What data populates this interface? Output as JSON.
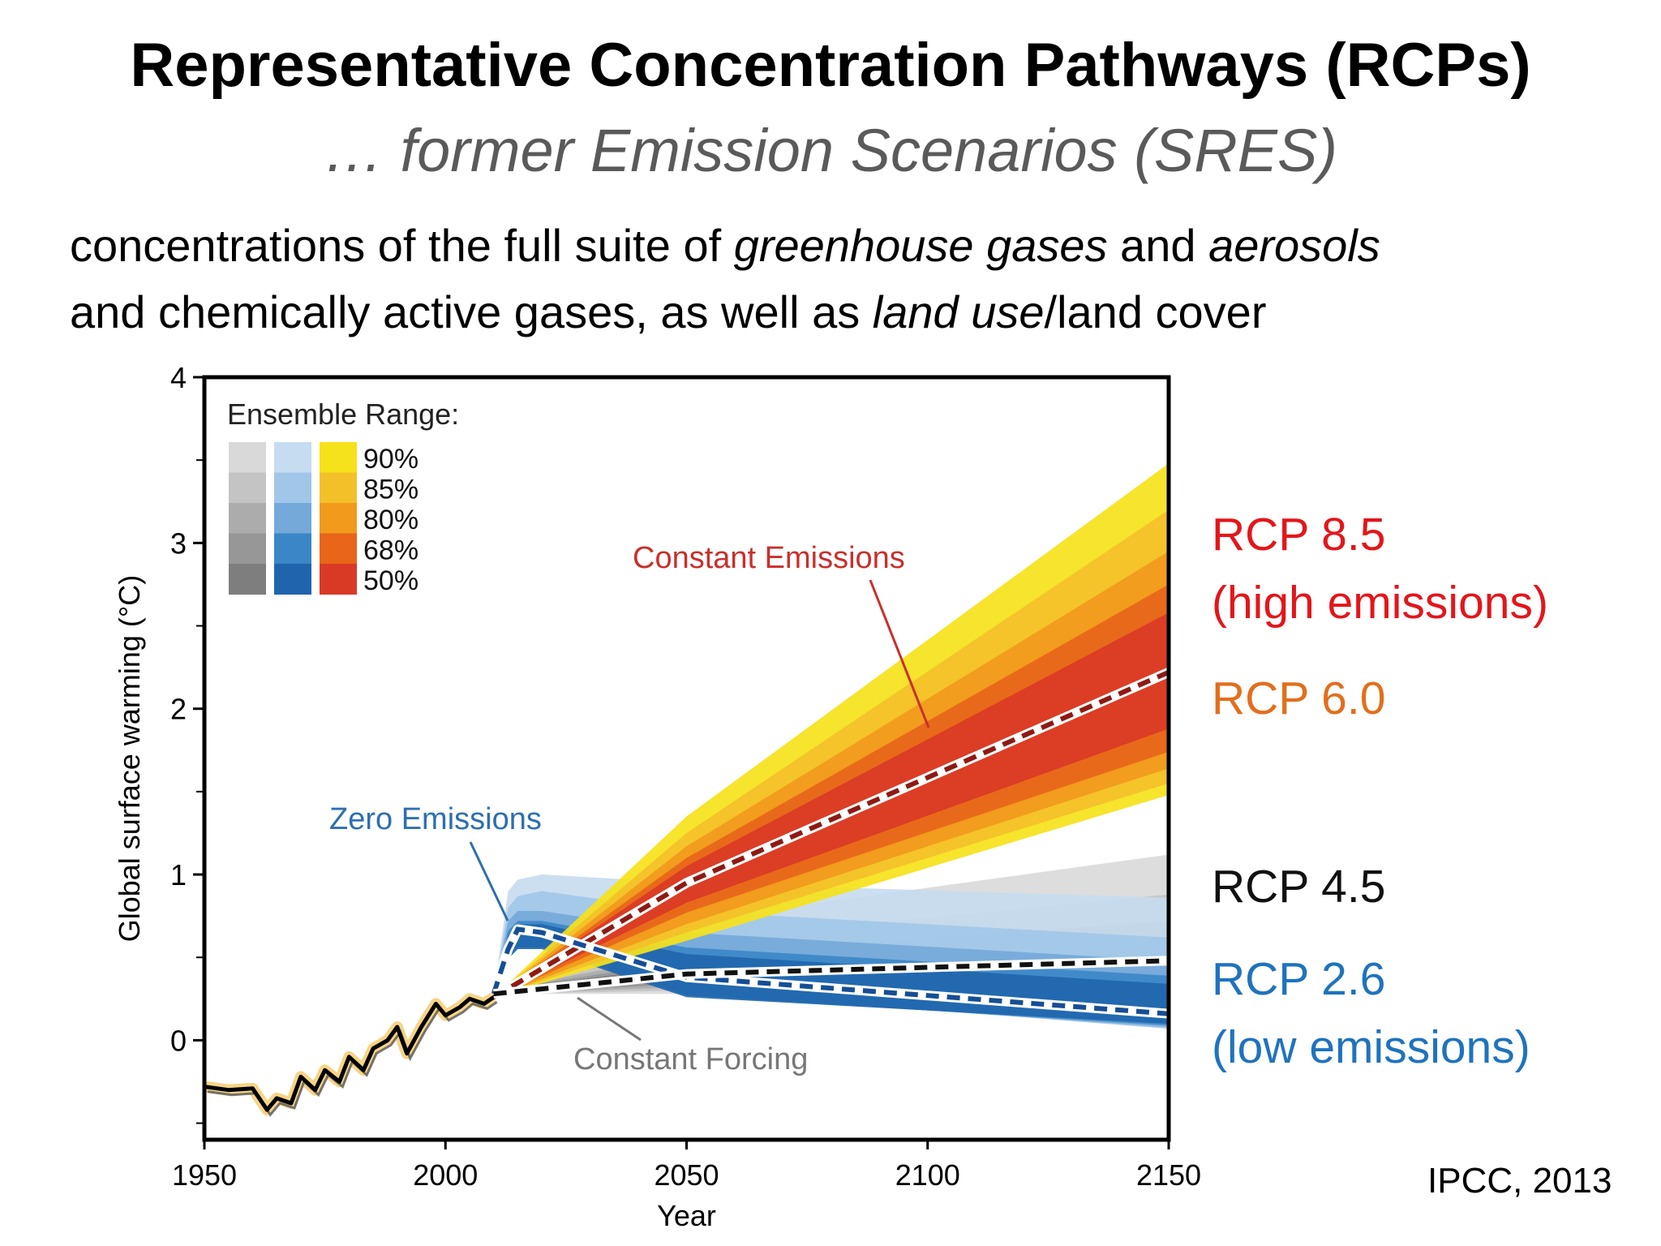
{
  "slide": {
    "title": "Representative Concentration Pathways (RCPs)",
    "subtitle": "… former Emission Scenarios (SRES)",
    "line1": {
      "a": "concentrations of the full suite of ",
      "b": "greenhouse gases",
      "c": " and ",
      "d": "aerosols"
    },
    "line2": {
      "a": "and chemically active gases, as well as ",
      "b": "land use",
      "c": "/land cover"
    },
    "source": "IPCC, 2013"
  },
  "rcp_labels": {
    "rcp85": "RCP 8.5",
    "rcp85_sub": "(high emissions)",
    "rcp60": "RCP 6.0",
    "rcp45": "RCP 4.5",
    "rcp26": "RCP 2.6",
    "rcp26_sub": "(low emissions)",
    "colors": {
      "rcp85": "#e3161b",
      "rcp60": "#e26f1c",
      "rcp45": "#111111",
      "rcp26": "#1e73be"
    }
  },
  "chart_data": {
    "type": "area",
    "xlabel": "Year",
    "ylabel": "Global surface warming (°C)",
    "xlim": [
      1950,
      2150
    ],
    "ylim": [
      -0.6,
      4
    ],
    "xticks": [
      1950,
      2000,
      2050,
      2100,
      2150
    ],
    "yticks": [
      0,
      1,
      2,
      3,
      4
    ],
    "grid": false,
    "legend": {
      "title": "Ensemble Range:",
      "levels": [
        "90%",
        "85%",
        "80%",
        "68%",
        "50%"
      ],
      "placement": "top-left",
      "swatches": {
        "gray": [
          "#d9d9d9",
          "#c4c4c4",
          "#acacac",
          "#979797",
          "#7e7e7e"
        ],
        "blue": [
          "#c6dcf0",
          "#a1c6e8",
          "#74a9d9",
          "#3b86c6",
          "#1f65ad"
        ],
        "warm": [
          "#f6e21a",
          "#f4c02a",
          "#f19a1c",
          "#e8651a",
          "#d93a26"
        ]
      }
    },
    "annotations": [
      {
        "text": "Constant Emissions",
        "color": "#c8302c"
      },
      {
        "text": "Zero Emissions",
        "color": "#2d6fb0"
      },
      {
        "text": "Constant Forcing",
        "color": "#777777"
      }
    ],
    "historical": {
      "x": [
        1950,
        1955,
        1960,
        1963,
        1965,
        1968,
        1970,
        1973,
        1975,
        1978,
        1980,
        1983,
        1985,
        1988,
        1990,
        1992,
        1995,
        1998,
        2000,
        2003,
        2005,
        2008,
        2010
      ],
      "y": [
        -0.28,
        -0.3,
        -0.29,
        -0.42,
        -0.35,
        -0.38,
        -0.22,
        -0.3,
        -0.18,
        -0.25,
        -0.1,
        -0.18,
        -0.05,
        0.0,
        0.08,
        -0.08,
        0.08,
        0.22,
        0.15,
        0.2,
        0.25,
        0.22,
        0.26
      ]
    },
    "series": [
      {
        "name": "Constant Emissions",
        "x": [
          2010,
          2050,
          2150
        ],
        "median": [
          0.26,
          0.95,
          2.22
        ],
        "ranges": {
          "90%": [
            [
              0.26,
              0.26
            ],
            [
              0.6,
              1.35
            ],
            [
              1.48,
              3.48
            ]
          ],
          "85%": [
            [
              0.26,
              0.26
            ],
            [
              0.65,
              1.25
            ],
            [
              1.55,
              3.2
            ]
          ],
          "80%": [
            [
              0.26,
              0.26
            ],
            [
              0.7,
              1.17
            ],
            [
              1.64,
              2.95
            ]
          ],
          "68%": [
            [
              0.26,
              0.26
            ],
            [
              0.77,
              1.1
            ],
            [
              1.74,
              2.75
            ]
          ],
          "50%": [
            [
              0.26,
              0.26
            ],
            [
              0.83,
              1.05
            ],
            [
              1.88,
              2.58
            ]
          ]
        }
      },
      {
        "name": "Zero Emissions",
        "x": [
          2010,
          2013,
          2015,
          2020,
          2050,
          2150
        ],
        "median": [
          0.28,
          0.55,
          0.67,
          0.65,
          0.38,
          0.16
        ],
        "ranges": {
          "90%": [
            [
              0.28,
              0.28
            ],
            [
              0.55,
              0.9
            ],
            [
              0.6,
              0.97
            ],
            [
              0.6,
              1.0
            ],
            [
              0.3,
              0.95
            ],
            [
              0.07,
              0.86
            ]
          ],
          "85%": [
            [
              0.28,
              0.28
            ],
            [
              0.55,
              0.8
            ],
            [
              0.6,
              0.87
            ],
            [
              0.6,
              0.9
            ],
            [
              0.3,
              0.78
            ],
            [
              0.07,
              0.62
            ]
          ],
          "80%": [
            [
              0.28,
              0.28
            ],
            [
              0.52,
              0.72
            ],
            [
              0.58,
              0.78
            ],
            [
              0.58,
              0.78
            ],
            [
              0.28,
              0.65
            ],
            [
              0.08,
              0.48
            ]
          ],
          "68%": [
            [
              0.28,
              0.28
            ],
            [
              0.5,
              0.66
            ],
            [
              0.56,
              0.72
            ],
            [
              0.56,
              0.72
            ],
            [
              0.27,
              0.56
            ],
            [
              0.09,
              0.39
            ]
          ],
          "50%": [
            [
              0.28,
              0.28
            ],
            [
              0.49,
              0.63
            ],
            [
              0.55,
              0.7
            ],
            [
              0.55,
              0.7
            ],
            [
              0.26,
              0.52
            ],
            [
              0.1,
              0.34
            ]
          ]
        }
      },
      {
        "name": "Constant Forcing",
        "x": [
          2010,
          2050,
          2150
        ],
        "median": [
          0.28,
          0.4,
          0.48
        ],
        "ranges": {
          "90%": [
            [
              0.28,
              0.3
            ],
            [
              0.28,
              0.72
            ],
            [
              0.35,
              1.12
            ]
          ],
          "85%": [
            [
              0.28,
              0.3
            ],
            [
              0.3,
              0.6
            ],
            [
              0.4,
              0.88
            ]
          ],
          "80%": [
            [
              0.28,
              0.3
            ],
            [
              0.32,
              0.52
            ],
            [
              0.45,
              0.72
            ]
          ],
          "68%": [
            [
              0.28,
              0.3
            ],
            [
              0.34,
              0.48
            ],
            [
              0.5,
              0.62
            ]
          ],
          "50%": [
            [
              0.28,
              0.3
            ],
            [
              0.36,
              0.45
            ],
            [
              0.52,
              0.58
            ]
          ]
        }
      }
    ]
  }
}
